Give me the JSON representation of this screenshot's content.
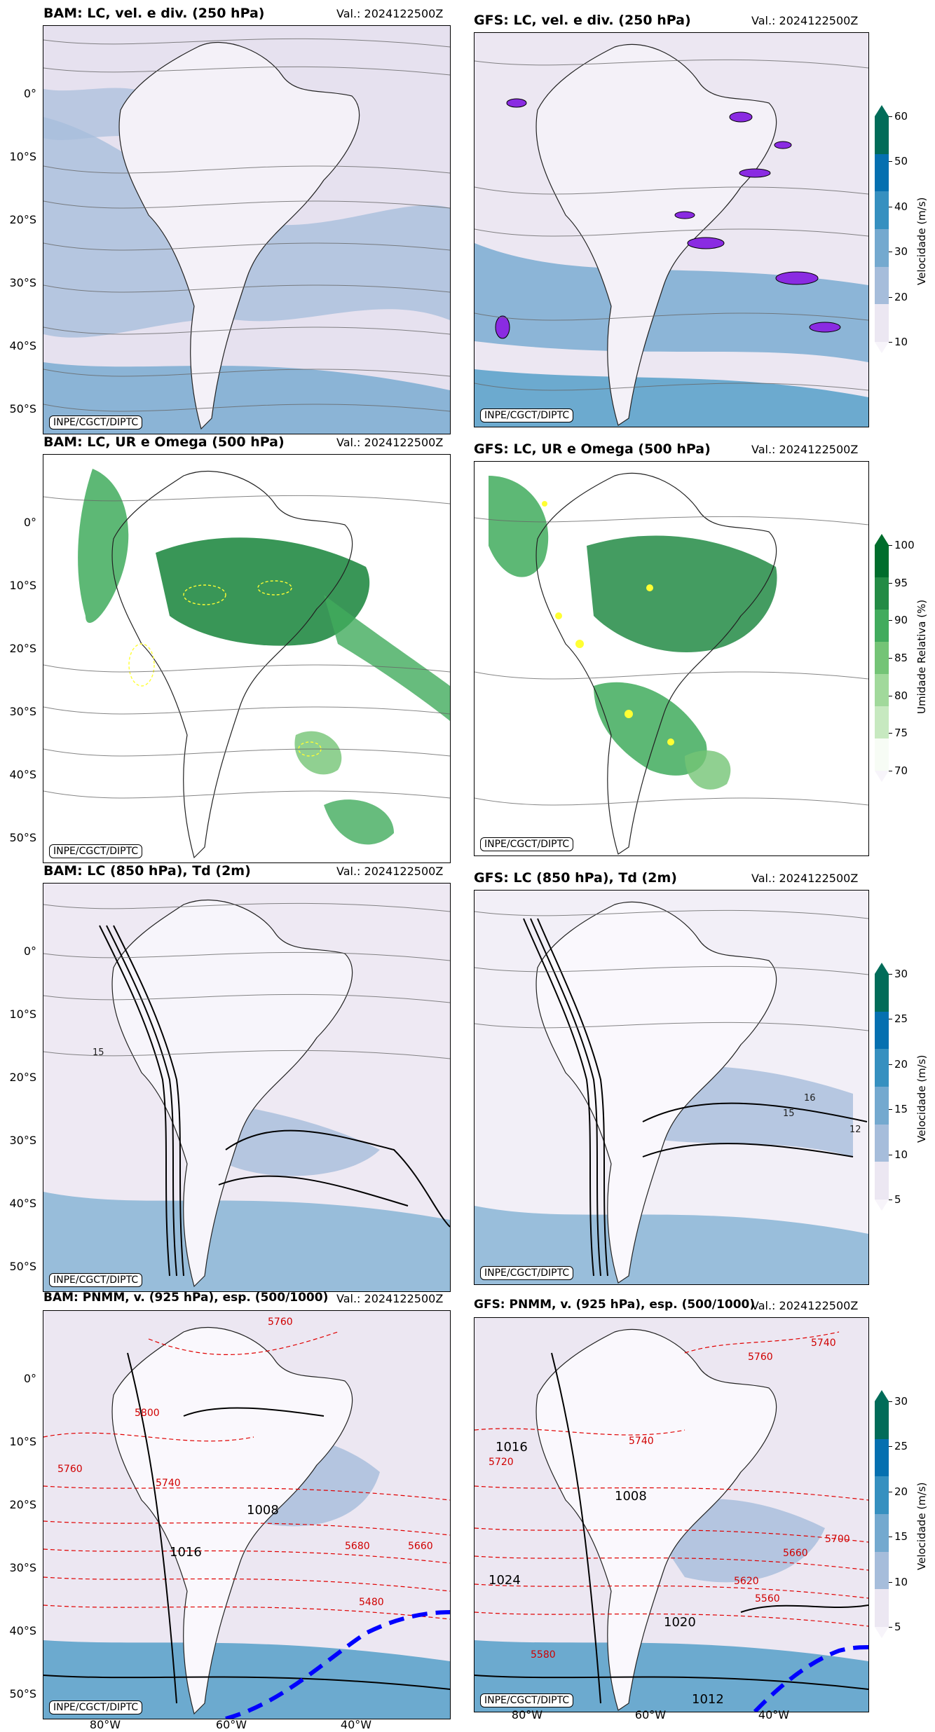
{
  "credit": "INPE/CGCT/DIPTC",
  "lat_ticks": [
    "0°",
    "10°S",
    "20°S",
    "30°S",
    "40°S",
    "50°S"
  ],
  "lon_ticks": [
    "80°W",
    "60°W",
    "40°W"
  ],
  "panels": [
    {
      "title": "BAM: LC, vel. e div. (250 hPa)",
      "valid": "Val.: 2024122500Z"
    },
    {
      "title": "GFS: LC, vel. e div. (250 hPa)",
      "valid": "Val.: 2024122500Z"
    },
    {
      "title": "BAM: LC, UR e Omega (500 hPa)",
      "valid": "Val.: 2024122500Z"
    },
    {
      "title": "GFS: LC, UR e Omega (500 hPa)",
      "valid": "Val.: 2024122500Z"
    },
    {
      "title": "BAM: LC (850 hPa), Td (2m)",
      "valid": "Val.: 2024122500Z"
    },
    {
      "title": "GFS: LC (850 hPa), Td (2m)",
      "valid": "Val.: 2024122500Z"
    },
    {
      "title": "BAM: PNMM, v. (925 hPa), esp. (500/1000)",
      "valid": "Val.: 2024122500Z"
    },
    {
      "title": "GFS: PNMM, v. (925 hPa), esp. (500/1000)",
      "valid": "Val.: 2024122500Z"
    }
  ],
  "colorbars": [
    {
      "label": "Velocidade (m/s)",
      "ticks": [
        "10",
        "20",
        "30",
        "40",
        "50",
        "60"
      ],
      "colors": [
        "#ece7f2",
        "#a6bddb",
        "#74a9cf",
        "#3690c0",
        "#0570b0",
        "#016c59"
      ]
    },
    {
      "label": "Umidade Relativa (%)",
      "ticks": [
        "70",
        "75",
        "80",
        "85",
        "90",
        "95",
        "100"
      ],
      "colors": [
        "#f7fcf5",
        "#c7e9c0",
        "#a1d99b",
        "#74c476",
        "#41ab5d",
        "#238b45",
        "#006d2c"
      ]
    },
    {
      "label": "Velocidade (m/s)",
      "ticks": [
        "5",
        "10",
        "15",
        "20",
        "25",
        "30"
      ],
      "colors": [
        "#ece7f2",
        "#a6bddb",
        "#74a9cf",
        "#3690c0",
        "#0570b0",
        "#016c59"
      ]
    },
    {
      "label": "Velocidade (m/s)",
      "ticks": [
        "5",
        "10",
        "15",
        "20",
        "25",
        "30"
      ],
      "colors": [
        "#ece7f2",
        "#a6bddb",
        "#74a9cf",
        "#3690c0",
        "#0570b0",
        "#016c59"
      ]
    }
  ],
  "contour_labels_bam_pnmm": [
    "5760",
    "5800",
    "5760",
    "5740",
    "5680",
    "5660",
    "5480",
    "1008",
    "1016"
  ],
  "contour_labels_gfs_pnmm": [
    "5740",
    "5760",
    "5740",
    "5720",
    "5700",
    "5660",
    "5620",
    "5560",
    "5580",
    "1016",
    "1008",
    "1024",
    "1020",
    "1012"
  ],
  "contour_labels_850": [
    "15",
    "16",
    "15",
    "12"
  ]
}
